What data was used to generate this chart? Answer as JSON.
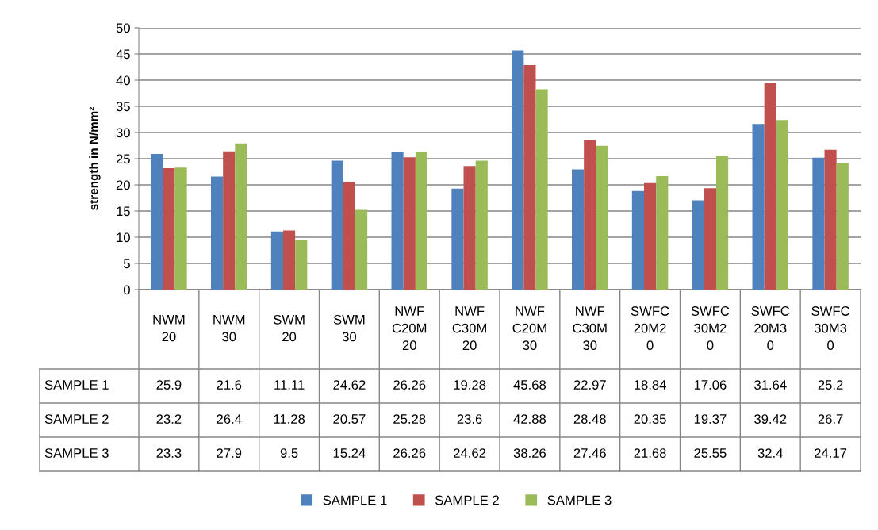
{
  "chart_data": {
    "type": "bar",
    "ylabel": "strength in N/mm²",
    "categories": [
      "NWM\n20",
      "NWM\n30",
      "SWM\n20",
      "SWM\n30",
      "NWF\nC20M\n20",
      "NWF\nC30M\n20",
      "NWF\nC20M\n30",
      "NWF\nC30M\n30",
      "SWFC\n20M2\n0",
      "SWFC\n30M2\n0",
      "SWFC\n20M3\n0",
      "SWFC\n30M3\n0"
    ],
    "series": [
      {
        "name": "SAMPLE 1",
        "color": "#4f81bd",
        "values": [
          25.9,
          21.6,
          11.11,
          24.62,
          26.26,
          19.28,
          45.68,
          22.97,
          18.84,
          17.06,
          31.64,
          25.2
        ]
      },
      {
        "name": "SAMPLE 2",
        "color": "#c0504d",
        "values": [
          23.2,
          26.4,
          11.28,
          20.57,
          25.28,
          23.6,
          42.88,
          28.48,
          20.35,
          19.37,
          39.42,
          26.7
        ]
      },
      {
        "name": "SAMPLE 3",
        "color": "#9bbb59",
        "values": [
          23.3,
          27.9,
          9.5,
          15.24,
          26.26,
          24.62,
          38.26,
          27.46,
          21.68,
          25.55,
          32.4,
          24.17
        ]
      }
    ],
    "ylim": [
      0,
      50
    ],
    "yticks": [
      0,
      5,
      10,
      15,
      20,
      25,
      30,
      35,
      40,
      45,
      50
    ],
    "grid": "y",
    "legend": "bottom",
    "data_labels": true
  }
}
